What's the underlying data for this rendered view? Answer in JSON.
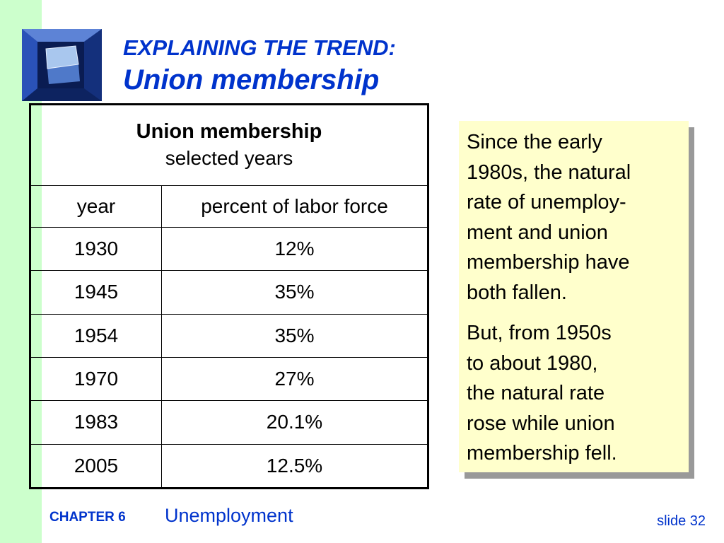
{
  "title": {
    "line1": "EXPLAINING THE TREND:",
    "line2": "Union membership"
  },
  "logo": {
    "icon": "window-shaft-icon"
  },
  "table": {
    "caption_title": "Union membership",
    "caption_subtitle": "selected years",
    "columns": [
      "year",
      "percent of labor force"
    ],
    "rows": [
      {
        "year": "1930",
        "percent": "12%"
      },
      {
        "year": "1945",
        "percent": "35%"
      },
      {
        "year": "1954",
        "percent": "35%"
      },
      {
        "year": "1970",
        "percent": "27%"
      },
      {
        "year": "1983",
        "percent": "20.1%"
      },
      {
        "year": "2005",
        "percent": "12.5%"
      }
    ]
  },
  "note": {
    "para1_lines": [
      "Since the early",
      "1980s, the natural",
      "rate of unemploy-",
      "ment and union",
      "membership have",
      "both fallen."
    ],
    "para2_lines": [
      "But, from 1950s",
      "to about 1980,",
      "the natural rate",
      "rose while union",
      "membership fell."
    ]
  },
  "footer": {
    "chapter": "CHAPTER 6",
    "topic": "Unemployment",
    "slide": "slide 32"
  },
  "colors": {
    "accent": "#0033cc",
    "left_bar": "#ccffcc",
    "note_bg": "#ffffcc",
    "note_shadow": "#999999"
  }
}
